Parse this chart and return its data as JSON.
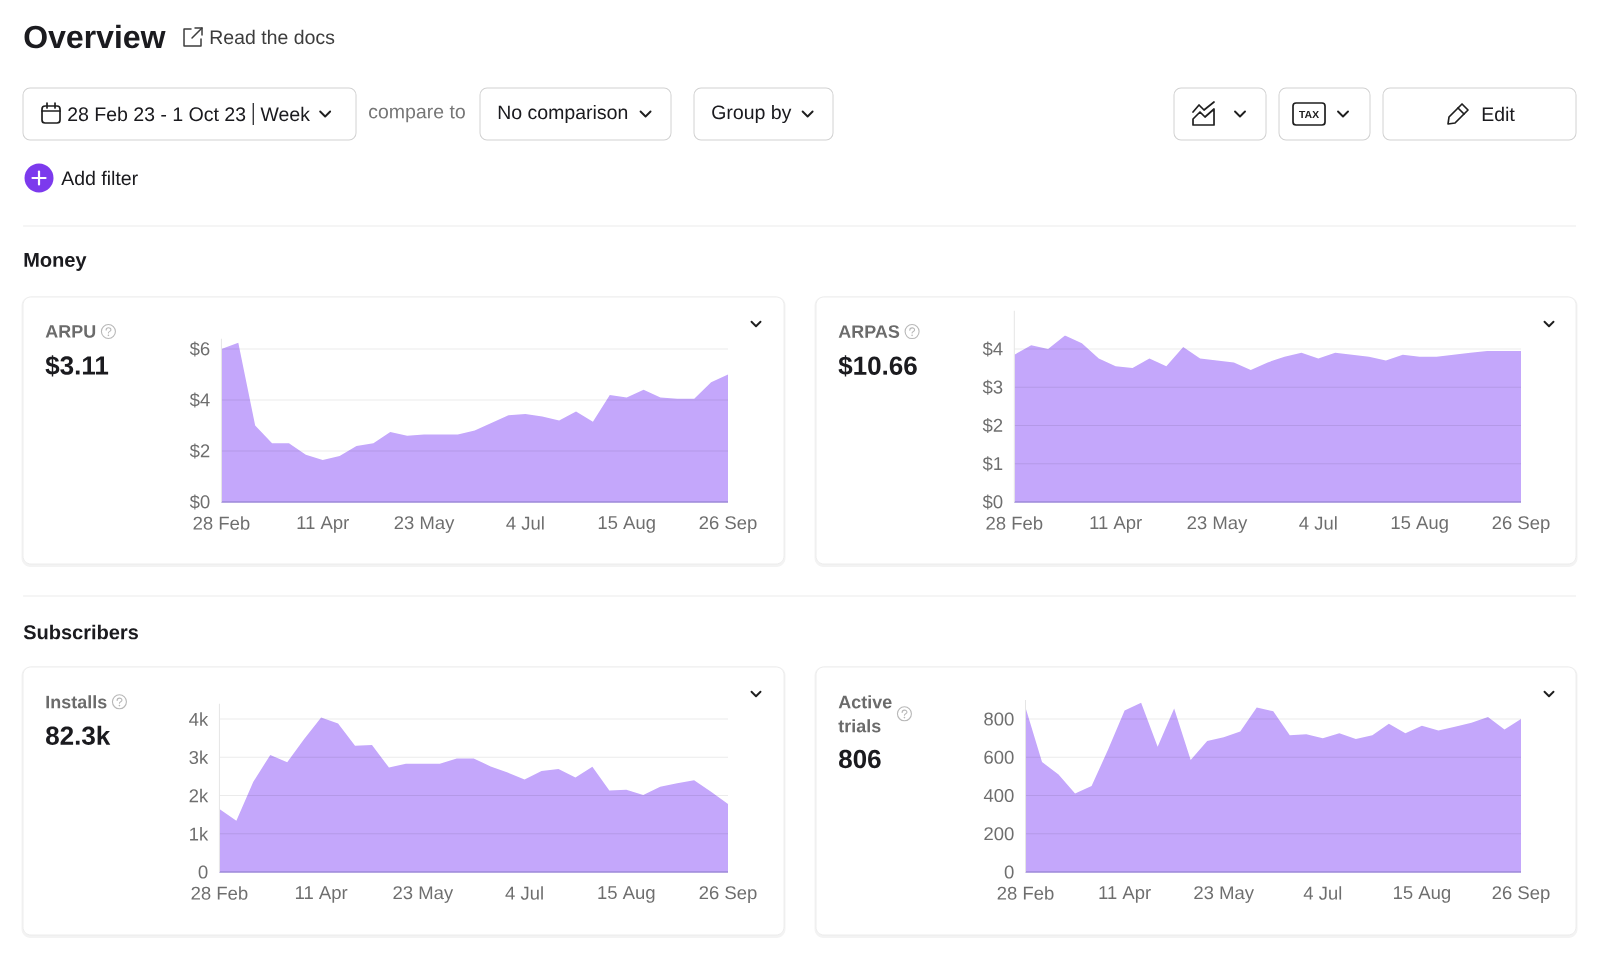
{
  "chart_data": [
    {
      "type": "other",
      "title": "Overview",
      "annotations": [
        "Read the docs",
        "28 Feb 23 - 1 Oct 23",
        "Week",
        "compare to",
        "No comparison",
        "Group by",
        "TAX",
        "Edit",
        "Add filter"
      ]
    },
    {
      "type": "area",
      "title": "ARPU",
      "subtitle": "$3.11",
      "annotations": [
        "Money"
      ],
      "categories": [
        "28 Feb",
        null,
        null,
        null,
        null,
        null,
        "11 Apr",
        null,
        null,
        null,
        null,
        null,
        "23 May",
        null,
        null,
        null,
        null,
        null,
        "4 Jul",
        null,
        null,
        null,
        null,
        null,
        "15 Aug",
        null,
        null,
        null,
        null,
        null,
        "26 Sep"
      ],
      "values": [
        6.0,
        6.25,
        3.0,
        2.3,
        2.3,
        1.85,
        1.65,
        1.8,
        2.2,
        2.3,
        2.75,
        2.6,
        2.65,
        2.65,
        2.65,
        2.8,
        3.1,
        3.4,
        3.45,
        3.35,
        3.2,
        3.55,
        3.15,
        4.2,
        4.1,
        4.4,
        4.1,
        4.05,
        4.05,
        4.7,
        5.0
      ],
      "color": "#c4a7fb",
      "ylim": [
        0,
        6.4
      ],
      "yticks": [
        {
          "value": 0,
          "label": "$0"
        },
        {
          "value": 2,
          "label": "$2"
        },
        {
          "value": 4,
          "label": "$4"
        },
        {
          "value": 6,
          "label": "$6"
        }
      ],
      "grid": "y"
    },
    {
      "type": "area",
      "title": "ARPAS",
      "subtitle": "$10.66",
      "categories": [
        "28 Feb",
        null,
        null,
        null,
        null,
        null,
        "11 Apr",
        null,
        null,
        null,
        null,
        null,
        "23 May",
        null,
        null,
        null,
        null,
        null,
        "4 Jul",
        null,
        null,
        null,
        null,
        null,
        "15 Aug",
        null,
        null,
        null,
        null,
        null,
        "26 Sep"
      ],
      "values": [
        3.85,
        4.1,
        4.0,
        4.35,
        4.15,
        3.75,
        3.55,
        3.5,
        3.75,
        3.55,
        4.05,
        3.75,
        3.7,
        3.65,
        3.45,
        3.65,
        3.8,
        3.9,
        3.75,
        3.9,
        3.85,
        3.8,
        3.7,
        3.85,
        3.8,
        3.8,
        3.85,
        3.9,
        3.95,
        3.95,
        3.95
      ],
      "color": "#c4a7fb",
      "ylim": [
        0,
        5
      ],
      "yticks": [
        {
          "value": 0,
          "label": "$0"
        },
        {
          "value": 1,
          "label": "$1"
        },
        {
          "value": 2,
          "label": "$2"
        },
        {
          "value": 3,
          "label": "$3"
        },
        {
          "value": 4,
          "label": "$4"
        }
      ],
      "grid": "y"
    },
    {
      "type": "area",
      "title": "Installs",
      "subtitle": "82.3k",
      "annotations": [
        "Subscribers"
      ],
      "categories": [
        "28 Feb",
        null,
        null,
        null,
        null,
        null,
        "11 Apr",
        null,
        null,
        null,
        null,
        null,
        "23 May",
        null,
        null,
        null,
        null,
        null,
        "4 Jul",
        null,
        null,
        null,
        null,
        null,
        "15 Aug",
        null,
        null,
        null,
        null,
        null,
        "26 Sep"
      ],
      "values": [
        1650,
        1340,
        2360,
        3060,
        2870,
        3480,
        4040,
        3880,
        3300,
        3320,
        2730,
        2830,
        2830,
        2830,
        2970,
        2970,
        2760,
        2600,
        2420,
        2640,
        2690,
        2470,
        2750,
        2130,
        2150,
        2010,
        2230,
        2320,
        2400,
        2100,
        1780
      ],
      "color": "#c4a7fb",
      "ylim": [
        0,
        4400
      ],
      "yticks": [
        0,
        {
          "value": 1000,
          "label": "1k"
        },
        {
          "value": 2000,
          "label": "2k"
        },
        {
          "value": 3000,
          "label": "3k"
        },
        {
          "value": 4000,
          "label": "4k"
        }
      ],
      "grid": "y"
    },
    {
      "type": "area",
      "title": "Active trials",
      "subtitle": "806",
      "categories": [
        "28 Feb",
        null,
        null,
        null,
        null,
        null,
        "11 Apr",
        null,
        null,
        null,
        null,
        null,
        "23 May",
        null,
        null,
        null,
        null,
        null,
        "4 Jul",
        null,
        null,
        null,
        null,
        null,
        "15 Aug",
        null,
        null,
        null,
        null,
        null,
        "26 Sep"
      ],
      "values": [
        860,
        575,
        510,
        410,
        450,
        640,
        845,
        885,
        655,
        855,
        585,
        685,
        705,
        735,
        860,
        840,
        715,
        720,
        700,
        725,
        695,
        715,
        775,
        725,
        765,
        740,
        760,
        780,
        810,
        745,
        800
      ],
      "color": "#c4a7fb",
      "ylim": [
        0,
        900
      ],
      "yticks": [
        0,
        200,
        400,
        600,
        800
      ],
      "grid": "y"
    }
  ]
}
